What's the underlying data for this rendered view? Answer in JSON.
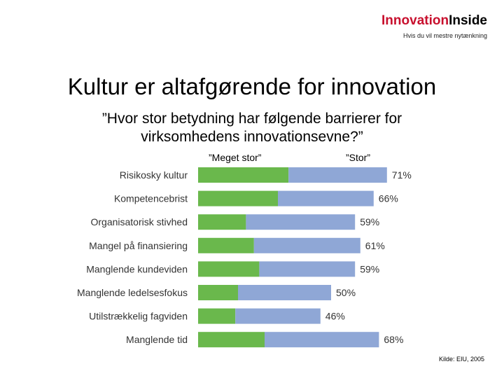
{
  "brand": {
    "name_part1": "Innovation",
    "name_part2": "Inside",
    "tagline": "Hvis du vil mestre nytænkning"
  },
  "title": "Kultur er altafgørende for innovation",
  "subtitle_line1": "”Hvor stor betydning har følgende barrierer for",
  "subtitle_line2": "virksomhedens innovationsevne?”",
  "source": "Kilde: EIU, 2005",
  "colors": {
    "meget_stor": "#6ab84c",
    "stor": "#8fa7d6"
  },
  "chart_data": {
    "type": "bar",
    "orientation": "horizontal",
    "stacked": true,
    "categories": [
      "Risikosky kultur",
      "Kompetencebrist",
      "Organisatorisk stivhed",
      "Mangel på finansiering",
      "Manglende kundeviden",
      "Manglende ledelsesfokus",
      "Utilstrækkelig fagviden",
      "Manglende tid"
    ],
    "series": [
      {
        "name": "”Meget stor”",
        "values": [
          34,
          30,
          18,
          21,
          23,
          15,
          14,
          25
        ]
      },
      {
        "name": "”Stor”",
        "values": [
          37,
          36,
          41,
          40,
          36,
          35,
          32,
          43
        ]
      }
    ],
    "totals_labels": [
      "71%",
      "66%",
      "59%",
      "61%",
      "59%",
      "50%",
      "46%",
      "68%"
    ],
    "xlim": [
      0,
      100
    ],
    "grid": false,
    "legend": "top"
  }
}
